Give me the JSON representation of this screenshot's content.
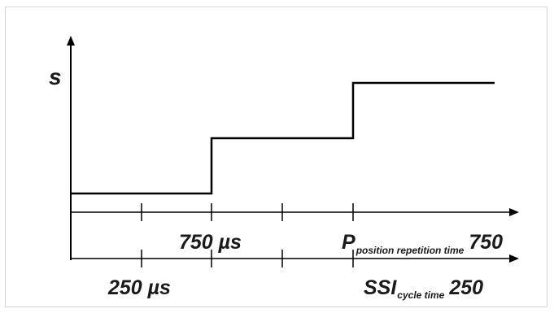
{
  "figure": {
    "y_axis_label": "s",
    "axis1": {
      "mid_label": "750 µs",
      "end_label_main": "P",
      "end_label_sub": "position repetition time",
      "end_label_value": "750"
    },
    "axis2": {
      "mid_label": "250 µs",
      "end_label_main": "SSI",
      "end_label_sub": "cycle time",
      "end_label_value": "250"
    },
    "signal": {
      "type": "step",
      "levels": [
        "low",
        "mid",
        "high"
      ],
      "step_times_us": [
        750,
        1500
      ]
    },
    "colors": {
      "line": "#000000",
      "text": "#1a1a1a",
      "border": "#d4d4d4"
    }
  }
}
